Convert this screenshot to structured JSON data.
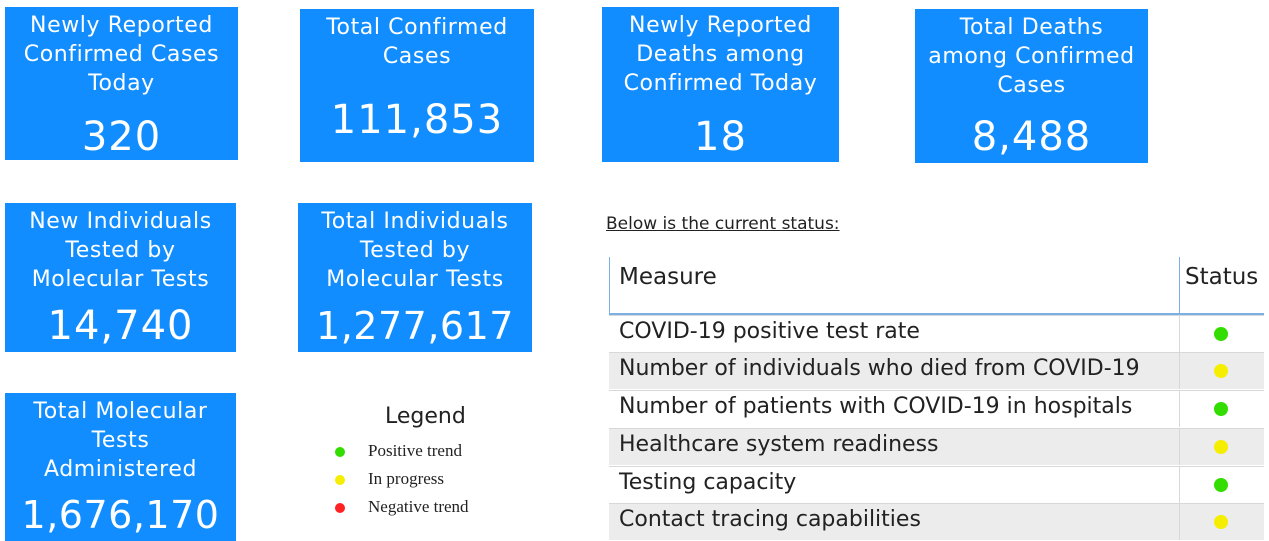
{
  "tiles": [
    {
      "label": [
        "Newly Reported",
        "Confirmed Cases",
        "Today"
      ],
      "value": "320"
    },
    {
      "label": [
        "Total Confirmed",
        "Cases"
      ],
      "value": "111,853"
    },
    {
      "label": [
        "Newly Reported",
        "Deaths among",
        "Confirmed Today"
      ],
      "value": "18"
    },
    {
      "label": [
        "Total Deaths",
        "among Confirmed",
        "Cases"
      ],
      "value": "8,488"
    },
    {
      "label": [
        "New Individuals",
        "Tested by",
        "Molecular Tests"
      ],
      "value": "14,740"
    },
    {
      "label": [
        "Total Individuals",
        "Tested by",
        "Molecular Tests"
      ],
      "value": "1,277,617"
    },
    {
      "label": [
        "Total Molecular",
        "Tests",
        "Administered"
      ],
      "value": "1,676,170"
    }
  ],
  "legend": {
    "title": "Legend",
    "items": [
      {
        "label": "Positive trend",
        "color": "#33dd00"
      },
      {
        "label": "In progress",
        "color": "#f5ee00"
      },
      {
        "label": "Negative trend",
        "color": "#ff2222"
      }
    ]
  },
  "status": {
    "caption": "Below is the current status:",
    "headers": {
      "measure": "Measure",
      "status": "Status"
    },
    "rows": [
      {
        "measure": "COVID-19 positive test rate",
        "status_color": "#33dd00"
      },
      {
        "measure": "Number of individuals who died from COVID-19",
        "status_color": "#f5ee00"
      },
      {
        "measure": "Number of patients with COVID-19 in hospitals",
        "status_color": "#33dd00"
      },
      {
        "measure": "Healthcare system readiness",
        "status_color": "#f5ee00"
      },
      {
        "measure": "Testing capacity",
        "status_color": "#33dd00"
      },
      {
        "measure": "Contact tracing capabilities",
        "status_color": "#f5ee00"
      }
    ]
  }
}
